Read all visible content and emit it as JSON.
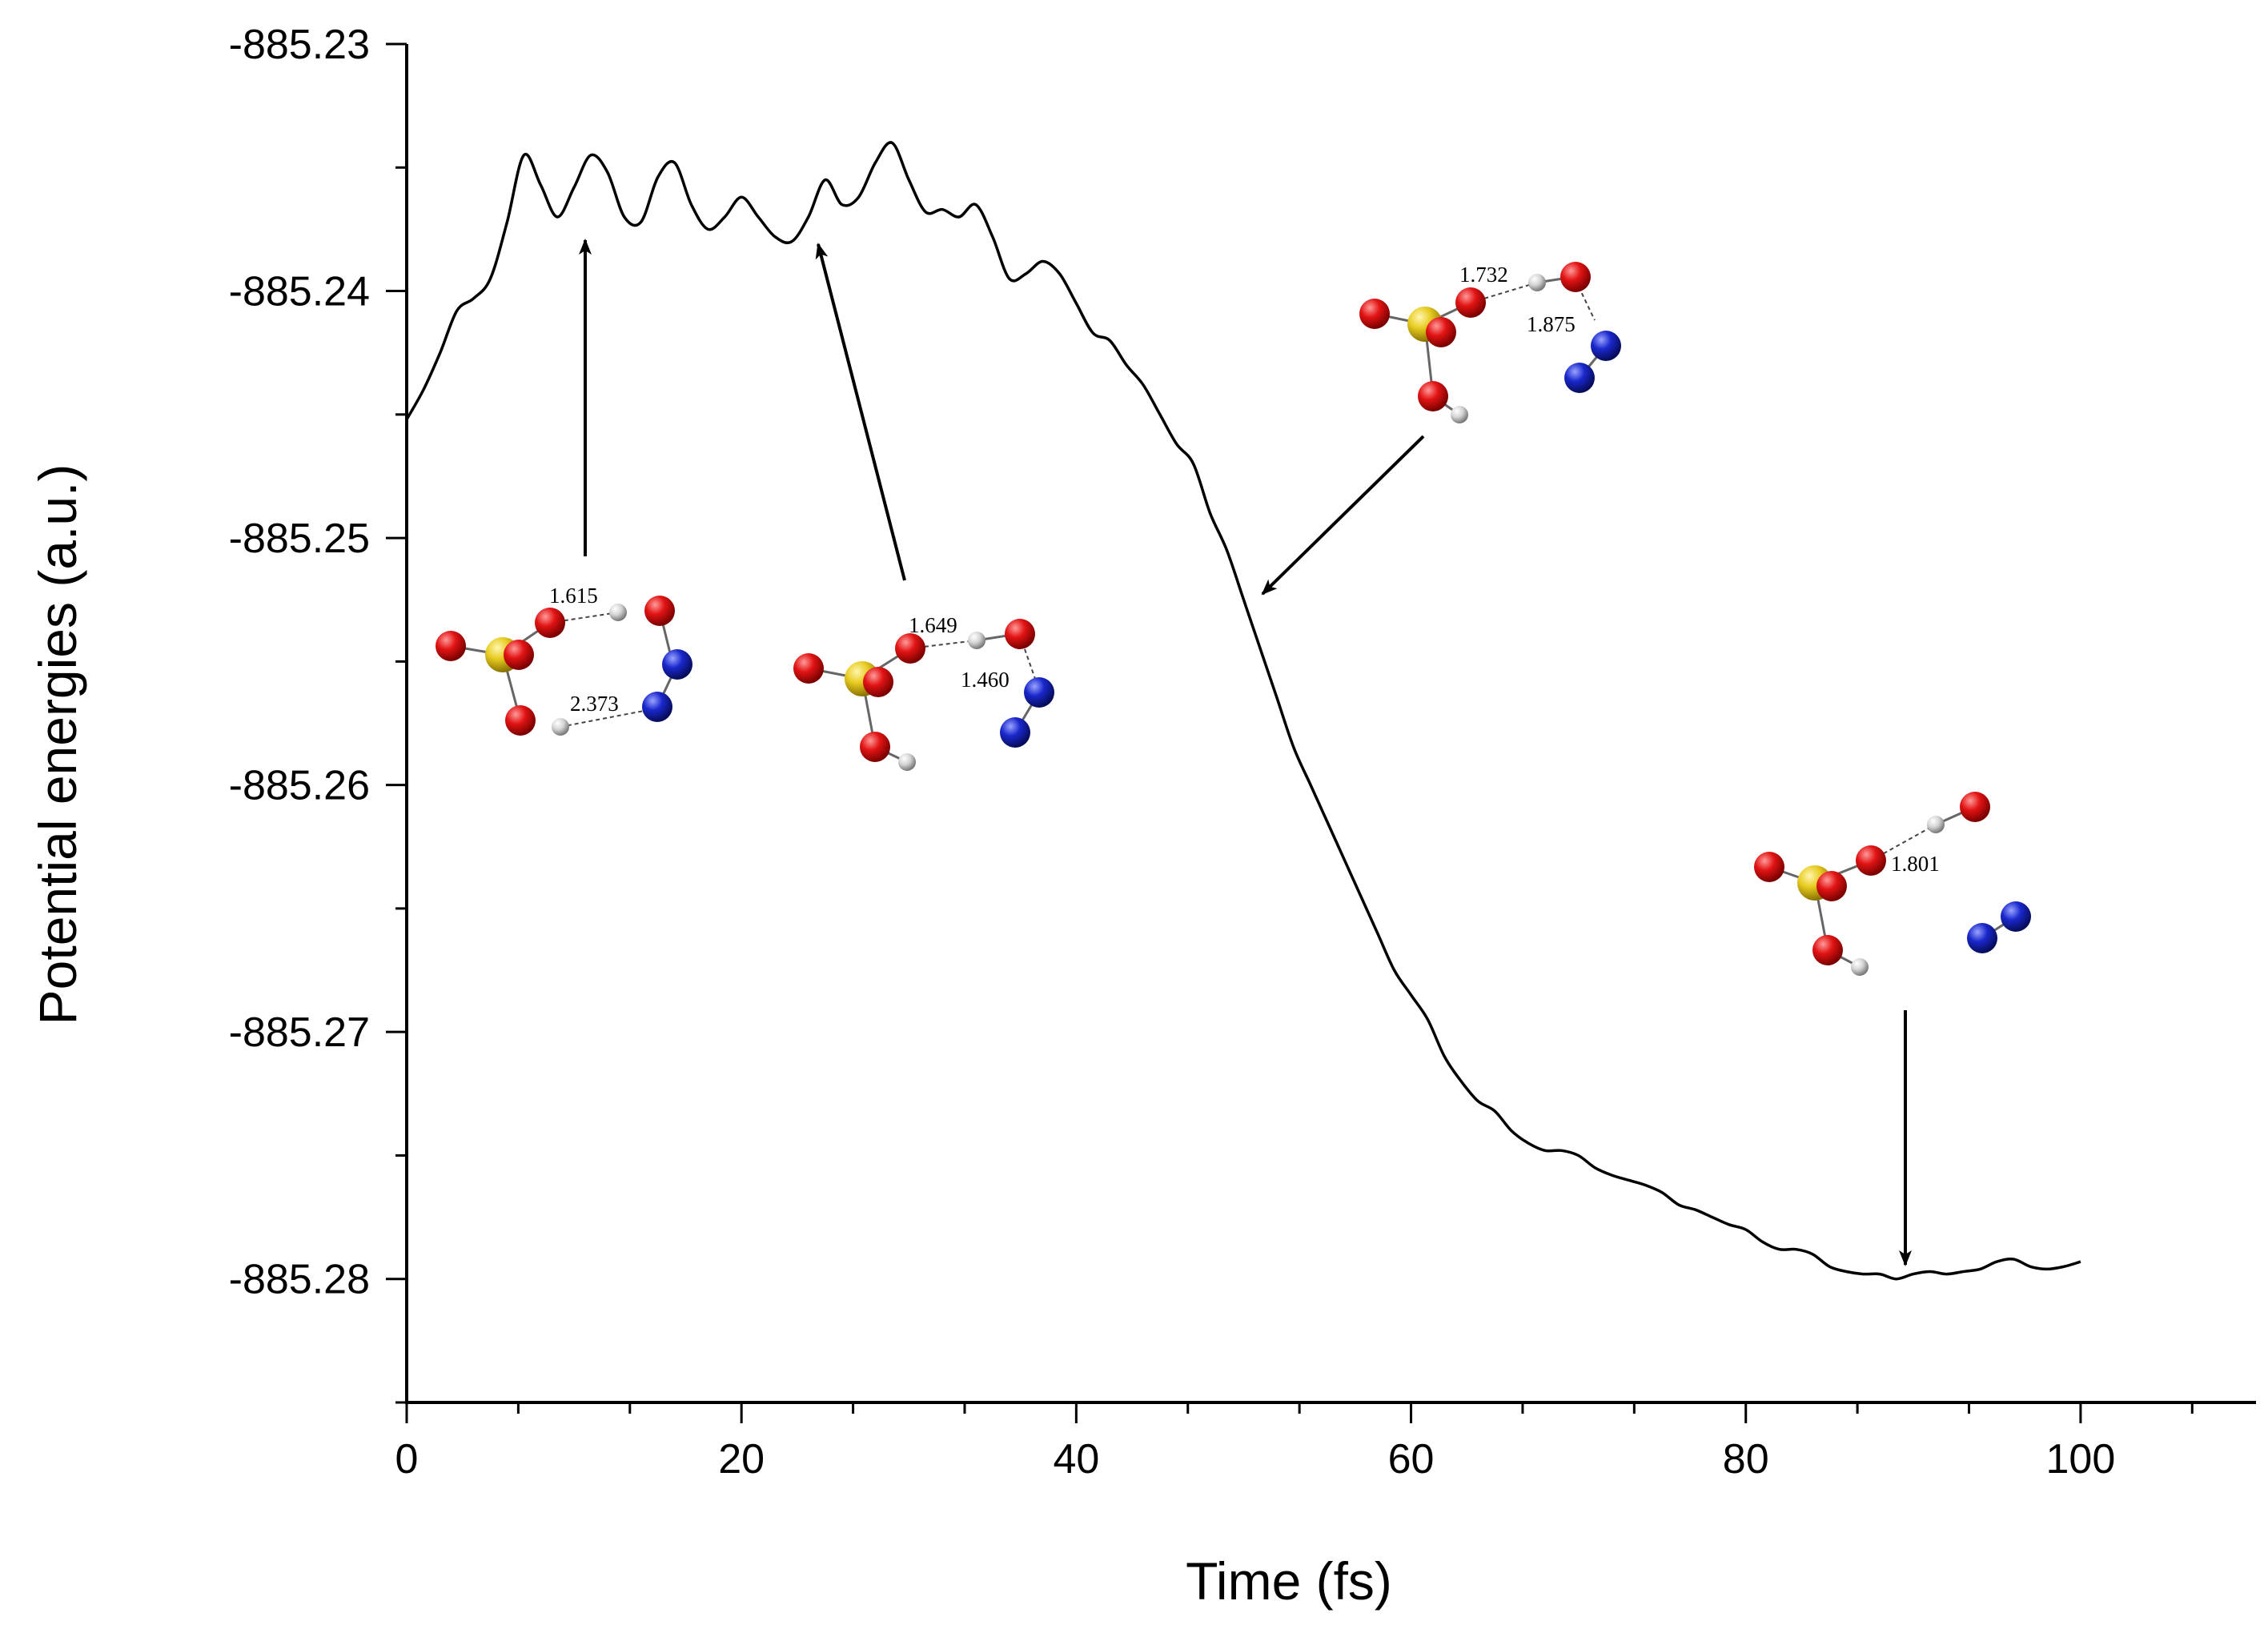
{
  "chart_data": {
    "type": "line",
    "title": "",
    "xlabel": "Time (fs)",
    "ylabel": "Potential energies (a.u.)",
    "xlim": [
      0,
      110
    ],
    "ylim": [
      -885.285,
      -885.23
    ],
    "xticks": [
      0,
      20,
      40,
      60,
      80,
      100
    ],
    "xtick_labels": [
      "0",
      "20",
      "40",
      "60",
      "80",
      "100"
    ],
    "yticks": [
      -885.23,
      -885.24,
      -885.25,
      -885.26,
      -885.27,
      -885.28
    ],
    "ytick_labels": [
      "-885.23",
      "-885.24",
      "-885.25",
      "-885.26",
      "-885.27",
      "-885.28"
    ],
    "series": [
      {
        "name": "Potential energy",
        "color": "#000000",
        "x": [
          0,
          1,
          2,
          3,
          4,
          5,
          6,
          7,
          8,
          9,
          10,
          11,
          12,
          13,
          14,
          15,
          16,
          17,
          18,
          19,
          20,
          21,
          22,
          23,
          24,
          25,
          26,
          27,
          28,
          29,
          30,
          31,
          32,
          33,
          34,
          35,
          36,
          37,
          38,
          39,
          40,
          41,
          42,
          43,
          44,
          45,
          46,
          47,
          48,
          49,
          50,
          51,
          52,
          53,
          54,
          55,
          56,
          57,
          58,
          59,
          60,
          61,
          62,
          63,
          64,
          65,
          66,
          67,
          68,
          69,
          70,
          71,
          72,
          73,
          74,
          75,
          76,
          77,
          78,
          79,
          80,
          81,
          82,
          83,
          84,
          85,
          86,
          87,
          88,
          89,
          90,
          91,
          92,
          93,
          94,
          95,
          96,
          97,
          98,
          99,
          100
        ],
        "values": [
          -885.2452,
          -885.244,
          -885.2425,
          -885.2408,
          -885.2403,
          -885.2395,
          -885.2372,
          -885.2345,
          -885.2357,
          -885.237,
          -885.2358,
          -885.2345,
          -885.2352,
          -885.237,
          -885.2372,
          -885.2354,
          -885.2348,
          -885.2365,
          -885.2375,
          -885.237,
          -885.2362,
          -885.237,
          -885.2378,
          -885.238,
          -885.237,
          -885.2355,
          -885.2365,
          -885.2362,
          -885.2348,
          -885.234,
          -885.2355,
          -885.2368,
          -885.2367,
          -885.237,
          -885.2365,
          -885.2378,
          -885.2395,
          -885.2393,
          -885.2388,
          -885.2393,
          -885.2405,
          -885.2417,
          -885.242,
          -885.243,
          -885.2438,
          -885.245,
          -885.2462,
          -885.247,
          -885.249,
          -885.2505,
          -885.2525,
          -885.2545,
          -885.2565,
          -885.2585,
          -885.26,
          -885.2615,
          -885.263,
          -885.2645,
          -885.266,
          -885.2675,
          -885.2685,
          -885.2695,
          -885.271,
          -885.272,
          -885.2728,
          -885.2732,
          -885.274,
          -885.2745,
          -885.2748,
          -885.2748,
          -885.275,
          -885.2755,
          -885.2758,
          -885.276,
          -885.2762,
          -885.2765,
          -885.277,
          -885.2772,
          -885.2775,
          -885.2778,
          -885.278,
          -885.2785,
          -885.2788,
          -885.2788,
          -885.279,
          -885.2795,
          -885.2797,
          -885.2798,
          -885.2798,
          -885.28,
          -885.2798,
          -885.2797,
          -885.2798,
          -885.2797,
          -885.2796,
          -885.2793,
          -885.2792,
          -885.2795,
          -885.2796,
          -885.2795,
          -885.2793
        ]
      }
    ],
    "annotations": [
      {
        "id": "struct-1",
        "arrow_to": [
          10.5,
          -885.2377
        ],
        "bond_labels": [
          "1.615",
          "2.373"
        ]
      },
      {
        "id": "struct-2",
        "arrow_to": [
          24,
          -885.238
        ],
        "bond_labels": [
          "1.649",
          "1.460"
        ]
      },
      {
        "id": "struct-3",
        "arrow_to": [
          51,
          -885.2522
        ],
        "bond_labels": [
          "1.732",
          "1.875"
        ]
      },
      {
        "id": "struct-4",
        "arrow_to": [
          89,
          -885.2798
        ],
        "bond_labels": [
          "1.801"
        ]
      }
    ],
    "atom_colors": {
      "oxygen": "#dd1111",
      "sulfur": "#e8cc22",
      "nitrogen": "#1a28cc",
      "hydrogen": "#d4d4d4"
    },
    "grid": false,
    "legend": "none"
  }
}
